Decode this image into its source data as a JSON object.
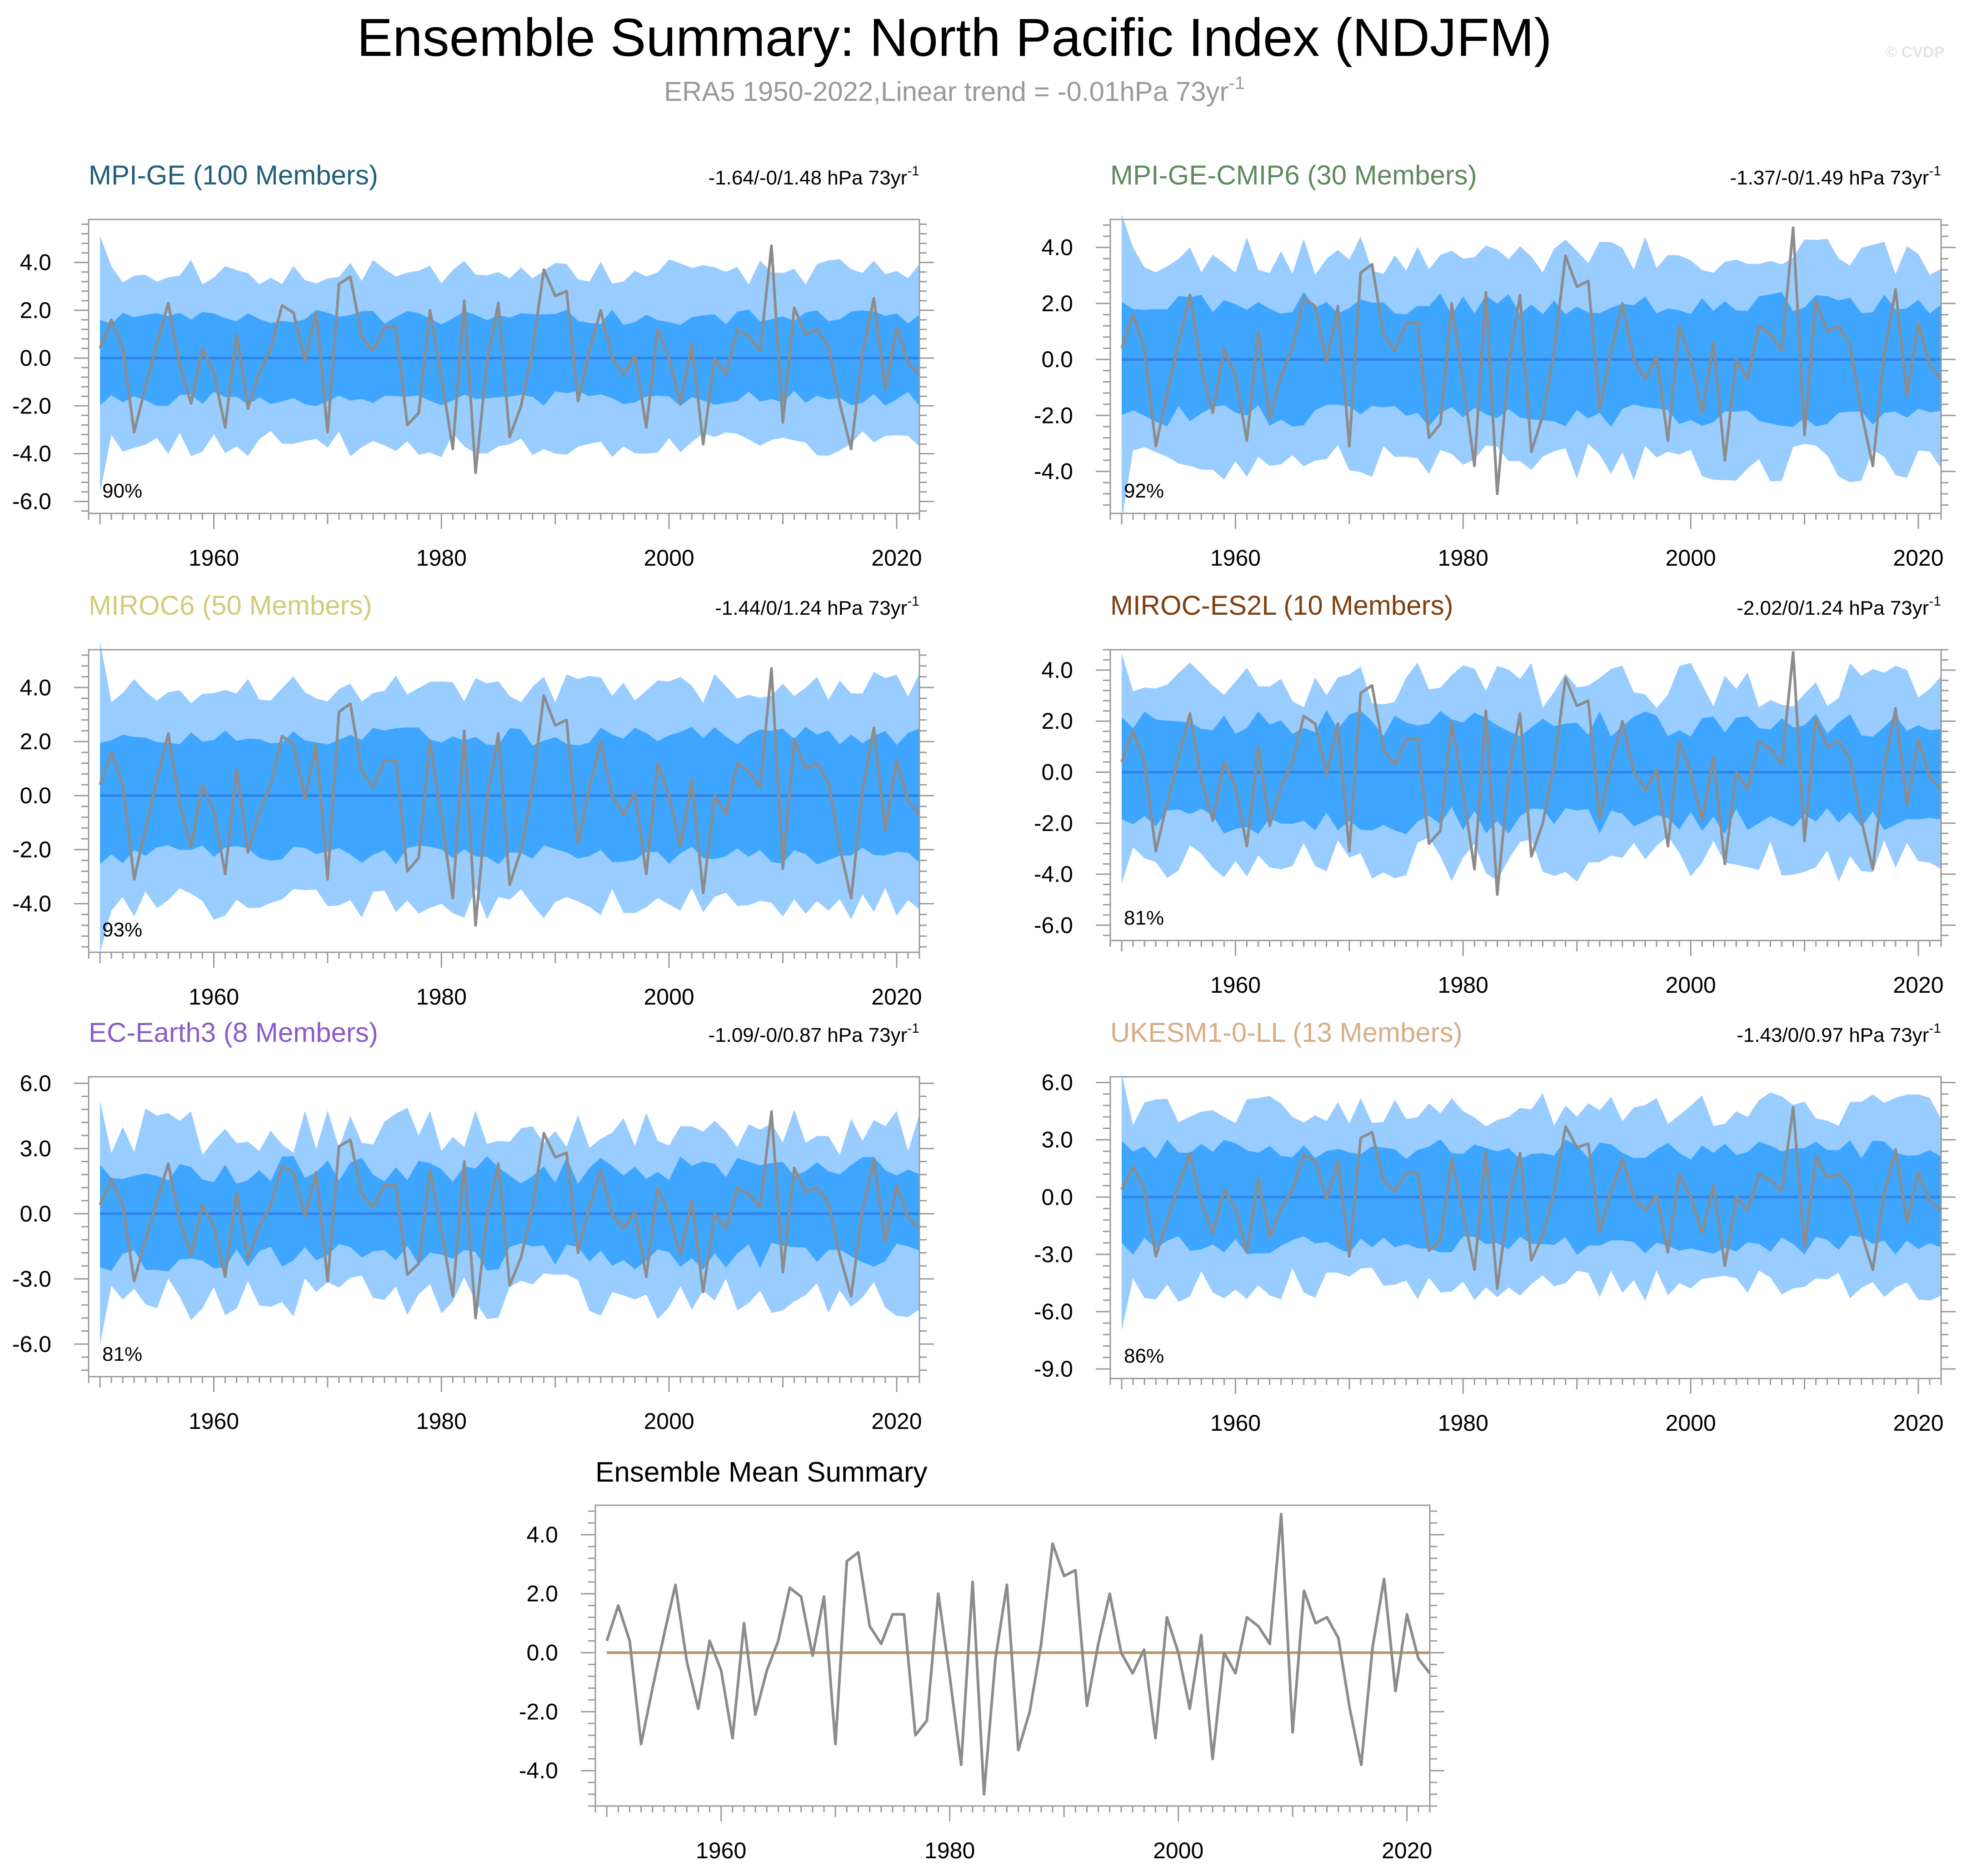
{
  "figure": {
    "title": "Ensemble Summary: North Pacific Index (NDJFM)",
    "subtitle": "ERA5 1950-2022,Linear trend = -0.01hPa 73yr",
    "subtitle_superscript": "-1",
    "watermark": "© CVDP",
    "colors": {
      "outer_band": "#99CCFF",
      "inner_band": "#3FA6FF",
      "ensemble_mean_line": "#2F86E8",
      "observations_line": "#8C8C8C",
      "multi_model_mean_line": "#B59A6E",
      "frame": "#999999",
      "tick_label": "#000000",
      "title_gray": "#9A9A9A"
    }
  },
  "chart_data": [
    {
      "type": "area",
      "title": "MPI-GE (100 Members)",
      "title_color": "#1F5F7A",
      "trend_label": "-1.64/-0/1.48 hPa 73yr",
      "trend_superscript": "-1",
      "percent_label": "90%",
      "xlim": [
        1949,
        2022
      ],
      "ylim": [
        -6.5,
        5.8
      ],
      "yticks": [
        -6.0,
        -4.0,
        -2.0,
        0.0,
        2.0,
        4.0
      ],
      "xticks": [
        1960,
        1980,
        2000,
        2020
      ],
      "outer_half_width": 3.6,
      "inner_half_width": 1.7,
      "band_jitter": 0.55,
      "seed": 11,
      "legend": "none"
    },
    {
      "type": "area",
      "title": "MPI-GE-CMIP6 (30 Members)",
      "title_color": "#5E8A5E",
      "trend_label": "-1.37/-0/1.49 hPa 73yr",
      "trend_superscript": "-1",
      "percent_label": "92%",
      "xlim": [
        1949,
        2022
      ],
      "ylim": [
        -5.5,
        5.0
      ],
      "yticks": [
        -4.0,
        -2.0,
        0.0,
        2.0,
        4.0
      ],
      "xticks": [
        1960,
        1980,
        2000,
        2020
      ],
      "outer_half_width": 3.7,
      "inner_half_width": 2.0,
      "band_jitter": 0.7,
      "seed": 23,
      "legend": "none"
    },
    {
      "type": "area",
      "title": "MIROC6 (50 Members)",
      "title_color": "#D2CB7A",
      "trend_label": "-1.44/0/1.24 hPa 73yr",
      "trend_superscript": "-1",
      "percent_label": "93%",
      "xlim": [
        1949,
        2022
      ],
      "ylim": [
        -5.8,
        5.4
      ],
      "yticks": [
        -4.0,
        -2.0,
        0.0,
        2.0,
        4.0
      ],
      "xticks": [
        1960,
        1980,
        2000,
        2020
      ],
      "outer_half_width": 4.0,
      "inner_half_width": 2.2,
      "band_jitter": 0.6,
      "seed": 37,
      "legend": "none"
    },
    {
      "type": "area",
      "title": "MIROC-ES2L (10 Members)",
      "title_color": "#7F3F10",
      "trend_label": "-2.02/0/1.24 hPa 73yr",
      "trend_superscript": "-1",
      "percent_label": "81%",
      "xlim": [
        1949,
        2022
      ],
      "ylim": [
        -6.6,
        4.8
      ],
      "yticks": [
        -6.0,
        -4.0,
        -2.0,
        0.0,
        2.0,
        4.0
      ],
      "xticks": [
        1960,
        1980,
        2000,
        2020
      ],
      "outer_half_width": 3.4,
      "inner_half_width": 1.9,
      "band_jitter": 0.9,
      "seed": 51,
      "legend": "none"
    },
    {
      "type": "area",
      "title": "EC-Earth3 (8 Members)",
      "title_color": "#8A5CC8",
      "trend_label": "-1.09/-0/0.87 hPa 73yr",
      "trend_superscript": "-1",
      "percent_label": "81%",
      "xlim": [
        1949,
        2022
      ],
      "ylim": [
        -7.5,
        6.3
      ],
      "yticks": [
        -6.0,
        -3.0,
        0.0,
        3.0,
        6.0
      ],
      "xticks": [
        1960,
        1980,
        2000,
        2020
      ],
      "outer_half_width": 3.8,
      "inner_half_width": 2.0,
      "band_jitter": 1.1,
      "seed": 67,
      "legend": "none"
    },
    {
      "type": "area",
      "title": "UKESM1-0-LL (13 Members)",
      "title_color": "#D6AE86",
      "trend_label": "-1.43/0/0.97 hPa 73yr",
      "trend_superscript": "-1",
      "percent_label": "86%",
      "xlim": [
        1949,
        2022
      ],
      "ylim": [
        -9.5,
        6.3
      ],
      "yticks": [
        -9.0,
        -6.0,
        -3.0,
        0.0,
        3.0,
        6.0
      ],
      "xticks": [
        1960,
        1980,
        2000,
        2020
      ],
      "outer_half_width": 4.6,
      "inner_half_width": 2.5,
      "band_jitter": 0.9,
      "seed": 79,
      "legend": "none"
    },
    {
      "type": "line",
      "title": "Ensemble Mean Summary",
      "title_color": "#000000",
      "xlim": [
        1949,
        2022
      ],
      "ylim": [
        -5.2,
        5.0
      ],
      "yticks": [
        -4.0,
        -2.0,
        0.0,
        2.0,
        4.0
      ],
      "xticks": [
        1960,
        1980,
        2000,
        2020
      ],
      "legend": "none"
    }
  ],
  "observations": {
    "x_start": 1950,
    "values": [
      0.4,
      1.6,
      0.4,
      -3.1,
      -1.2,
      0.6,
      2.3,
      -0.3,
      -1.9,
      0.4,
      -0.6,
      -2.9,
      1.0,
      -2.1,
      -0.6,
      0.4,
      2.2,
      1.9,
      -0.1,
      1.9,
      -3.1,
      3.1,
      3.4,
      0.9,
      0.3,
      1.3,
      1.3,
      -2.8,
      -2.3,
      2.0,
      -0.8,
      -3.8,
      2.4,
      -4.8,
      -0.2,
      2.3,
      -3.3,
      -2.0,
      0.3,
      3.7,
      2.6,
      2.8,
      -1.8,
      0.3,
      2.0,
      0.0,
      -0.7,
      0.1,
      -2.9,
      1.2,
      0.0,
      -1.9,
      0.6,
      -3.6,
      0.0,
      -0.7,
      1.2,
      0.9,
      0.3,
      4.7,
      -2.7,
      2.1,
      1.0,
      1.2,
      0.5,
      -1.9,
      -3.8,
      0.2,
      2.5,
      -1.3,
      1.3,
      -0.2,
      -0.7
    ]
  },
  "ensemble_mean": {
    "value": 0.0
  }
}
